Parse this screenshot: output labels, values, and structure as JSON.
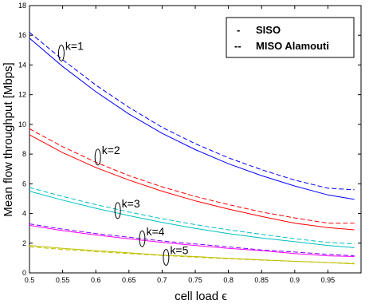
{
  "chart_data": {
    "type": "line",
    "xlabel": "cell load ",
    "xlabel_symbol": "ϵ",
    "ylabel": "Mean flow throughput [Mbps]",
    "xlim": [
      0.5,
      1.0
    ],
    "ylim": [
      0,
      18
    ],
    "x_ticks": [
      "0.5",
      "0.55",
      "0.6",
      "0.65",
      "0.7",
      "0.75",
      "0.8",
      "0.85",
      "0.9",
      "0.95"
    ],
    "y_ticks": [
      "0",
      "2",
      "4",
      "6",
      "8",
      "10",
      "12",
      "14",
      "16",
      "18"
    ],
    "grid": false,
    "legend_position": "top-right",
    "legend": [
      {
        "marker": "-",
        "label": "SISO",
        "style": "solid"
      },
      {
        "marker": "--",
        "label": "MISO Alamouti",
        "style": "dashed"
      }
    ],
    "x": [
      0.5,
      0.55,
      0.6,
      0.65,
      0.7,
      0.75,
      0.8,
      0.85,
      0.9,
      0.95,
      0.99
    ],
    "series": [
      {
        "group": "k=1",
        "style": "solid",
        "color": "#0000ff",
        "values": [
          15.8,
          13.9,
          12.2,
          10.7,
          9.4,
          8.3,
          7.35,
          6.55,
          5.85,
          5.25,
          4.95
        ]
      },
      {
        "group": "k=1",
        "style": "dashed",
        "color": "#0000ff",
        "values": [
          16.2,
          14.35,
          12.65,
          11.15,
          9.8,
          8.7,
          7.75,
          6.95,
          6.25,
          5.7,
          5.6
        ]
      },
      {
        "group": "k=2",
        "style": "solid",
        "color": "#ff0000",
        "values": [
          9.3,
          8.1,
          7.1,
          6.25,
          5.5,
          4.85,
          4.3,
          3.8,
          3.35,
          3.05,
          2.9
        ]
      },
      {
        "group": "k=2",
        "style": "dashed",
        "color": "#ff0000",
        "values": [
          9.7,
          8.5,
          7.45,
          6.55,
          5.8,
          5.15,
          4.6,
          4.1,
          3.7,
          3.35,
          3.35
        ]
      },
      {
        "group": "k=3",
        "style": "solid",
        "color": "#00c0c0",
        "values": [
          5.5,
          4.9,
          4.35,
          3.85,
          3.4,
          3.0,
          2.65,
          2.35,
          2.1,
          1.85,
          1.7
        ]
      },
      {
        "group": "k=3",
        "style": "dashed",
        "color": "#00c0c0",
        "values": [
          5.75,
          5.15,
          4.6,
          4.1,
          3.65,
          3.25,
          2.9,
          2.6,
          2.3,
          2.05,
          1.95
        ]
      },
      {
        "group": "k=4",
        "style": "solid",
        "color": "#ff00ff",
        "values": [
          3.2,
          2.85,
          2.55,
          2.3,
          2.05,
          1.85,
          1.65,
          1.5,
          1.3,
          1.15,
          1.1
        ]
      },
      {
        "group": "k=4",
        "style": "dashed",
        "color": "#8000ff",
        "values": [
          3.3,
          2.95,
          2.65,
          2.4,
          2.15,
          1.95,
          1.75,
          1.55,
          1.4,
          1.25,
          1.15
        ]
      },
      {
        "group": "k=5",
        "style": "solid",
        "color": "#c0c000",
        "values": [
          1.85,
          1.65,
          1.5,
          1.35,
          1.2,
          1.1,
          0.98,
          0.88,
          0.78,
          0.7,
          0.6
        ]
      },
      {
        "group": "k=5",
        "style": "dashed",
        "color": "#c0c000",
        "values": [
          1.75,
          1.58,
          1.43,
          1.3,
          1.17,
          1.06,
          0.95,
          0.86,
          0.78,
          0.7,
          0.65
        ]
      }
    ],
    "annotations": [
      {
        "text": "k=1",
        "x": 0.548,
        "y": 14.8
      },
      {
        "text": "k=2",
        "x": 0.603,
        "y": 7.8
      },
      {
        "text": "k=3",
        "x": 0.633,
        "y": 4.2
      },
      {
        "text": "k=4",
        "x": 0.67,
        "y": 2.3
      },
      {
        "text": "k=5",
        "x": 0.706,
        "y": 1.05
      }
    ]
  }
}
